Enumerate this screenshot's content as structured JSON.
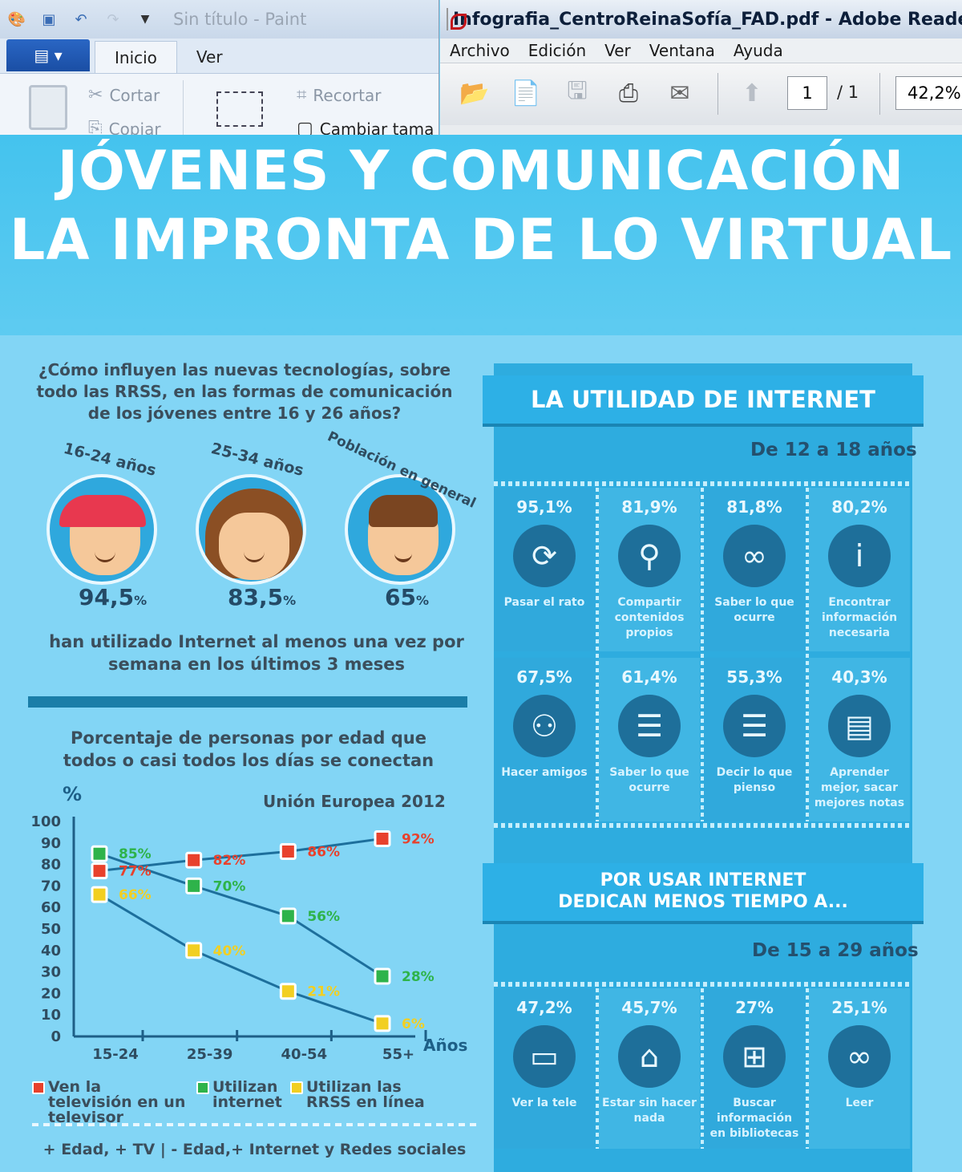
{
  "paint": {
    "title": "Sin título - Paint",
    "tabs": [
      "Inicio",
      "Ver"
    ],
    "ribbon": {
      "cut": "Cortar",
      "copy": "Copiar",
      "crop": "Recortar",
      "resize": "Cambiar tama"
    }
  },
  "adobe": {
    "title": "Infografia_CentroReinaSofía_FAD.pdf - Adobe Reader",
    "menu": [
      "Archivo",
      "Edición",
      "Ver",
      "Ventana",
      "Ayuda"
    ],
    "page_current": "1",
    "page_total": "/ 1",
    "zoom": "42,2%"
  },
  "infographic": {
    "title_line1": "JÓVENES Y COMUNICACIÓN",
    "title_line2": "LA IMPRONTA DE LO VIRTUAL",
    "question": "¿Cómo influyen las nuevas tecnologías, sobre todo las RRSS, en las formas de comunicación de los jóvenes entre 16 y 26 años?",
    "groups": [
      {
        "label": "16-24 años",
        "value": "94,5",
        "unit": "%"
      },
      {
        "label": "25-34 años",
        "value": "83,5",
        "unit": "%"
      },
      {
        "label": "Población en general",
        "value": "65",
        "unit": "%"
      }
    ],
    "caption": "han utilizado Internet al menos una vez por semana en los últimos 3 meses",
    "chart_title": "Porcentaje de personas por edad que todos o casi todos los días se conectan",
    "footer": "+ Edad, + TV | - Edad,+ Internet y Redes sociales",
    "utilidad": {
      "title": "LA UTILIDAD DE INTERNET",
      "age_range": "De 12 a 18 años",
      "items": [
        {
          "pct": "95,1%",
          "label": "Pasar el rato",
          "icon": "clock-icon"
        },
        {
          "pct": "81,9%",
          "label": "Compartir contenidos propios",
          "icon": "share-tree-icon"
        },
        {
          "pct": "81,8%",
          "label": "Saber lo que ocurre",
          "icon": "binoculars-icon"
        },
        {
          "pct": "80,2%",
          "label": "Encontrar información necesaria",
          "icon": "info-icon"
        },
        {
          "pct": "67,5%",
          "label": "Hacer amigos",
          "icon": "add-friend-icon"
        },
        {
          "pct": "61,4%",
          "label": "Saber lo que ocurre",
          "icon": "document-icon"
        },
        {
          "pct": "55,3%",
          "label": "Decir lo que pienso",
          "icon": "speech-bubble-icon"
        },
        {
          "pct": "40,3%",
          "label": "Aprender mejor, sacar mejores notas",
          "icon": "book-icon"
        }
      ]
    },
    "menos_tiempo": {
      "title_line1": "POR USAR INTERNET",
      "title_line2": "DEDICAN MENOS TIEMPO A...",
      "age_range": "De 15 a 29 años",
      "items": [
        {
          "pct": "47,2%",
          "label": "Ver la tele",
          "icon": "tv-icon"
        },
        {
          "pct": "45,7%",
          "label": "Estar sin hacer nada",
          "icon": "sofa-icon"
        },
        {
          "pct": "27%",
          "label": "Buscar información en bibliotecas",
          "icon": "open-book-icon"
        },
        {
          "pct": "25,1%",
          "label": "Leer",
          "icon": "glasses-icon"
        }
      ]
    }
  },
  "chart_data": {
    "type": "line",
    "title": "Unión Europea 2012",
    "xlabel": "Años",
    "ylabel": "%",
    "categories": [
      "15-24",
      "25-39",
      "40-54",
      "55+"
    ],
    "ylim": [
      0,
      100
    ],
    "yticks": [
      0,
      10,
      20,
      30,
      40,
      50,
      60,
      70,
      80,
      90,
      100
    ],
    "series": [
      {
        "name": "Ven la televisión en un televisor",
        "color": "#e8412c",
        "values": [
          77,
          82,
          86,
          92
        ],
        "labels": [
          "77%",
          "82%",
          "86%",
          "92%"
        ]
      },
      {
        "name": "Utilizan internet",
        "color": "#2eb34a",
        "values": [
          85,
          70,
          56,
          28
        ],
        "labels": [
          "85%",
          "70%",
          "56%",
          "28%"
        ]
      },
      {
        "name": "Utilizan las RRSS en línea",
        "color": "#f2cf22",
        "values": [
          66,
          40,
          21,
          6
        ],
        "labels": [
          "66%",
          "40%",
          "21%",
          "6%"
        ]
      }
    ]
  }
}
